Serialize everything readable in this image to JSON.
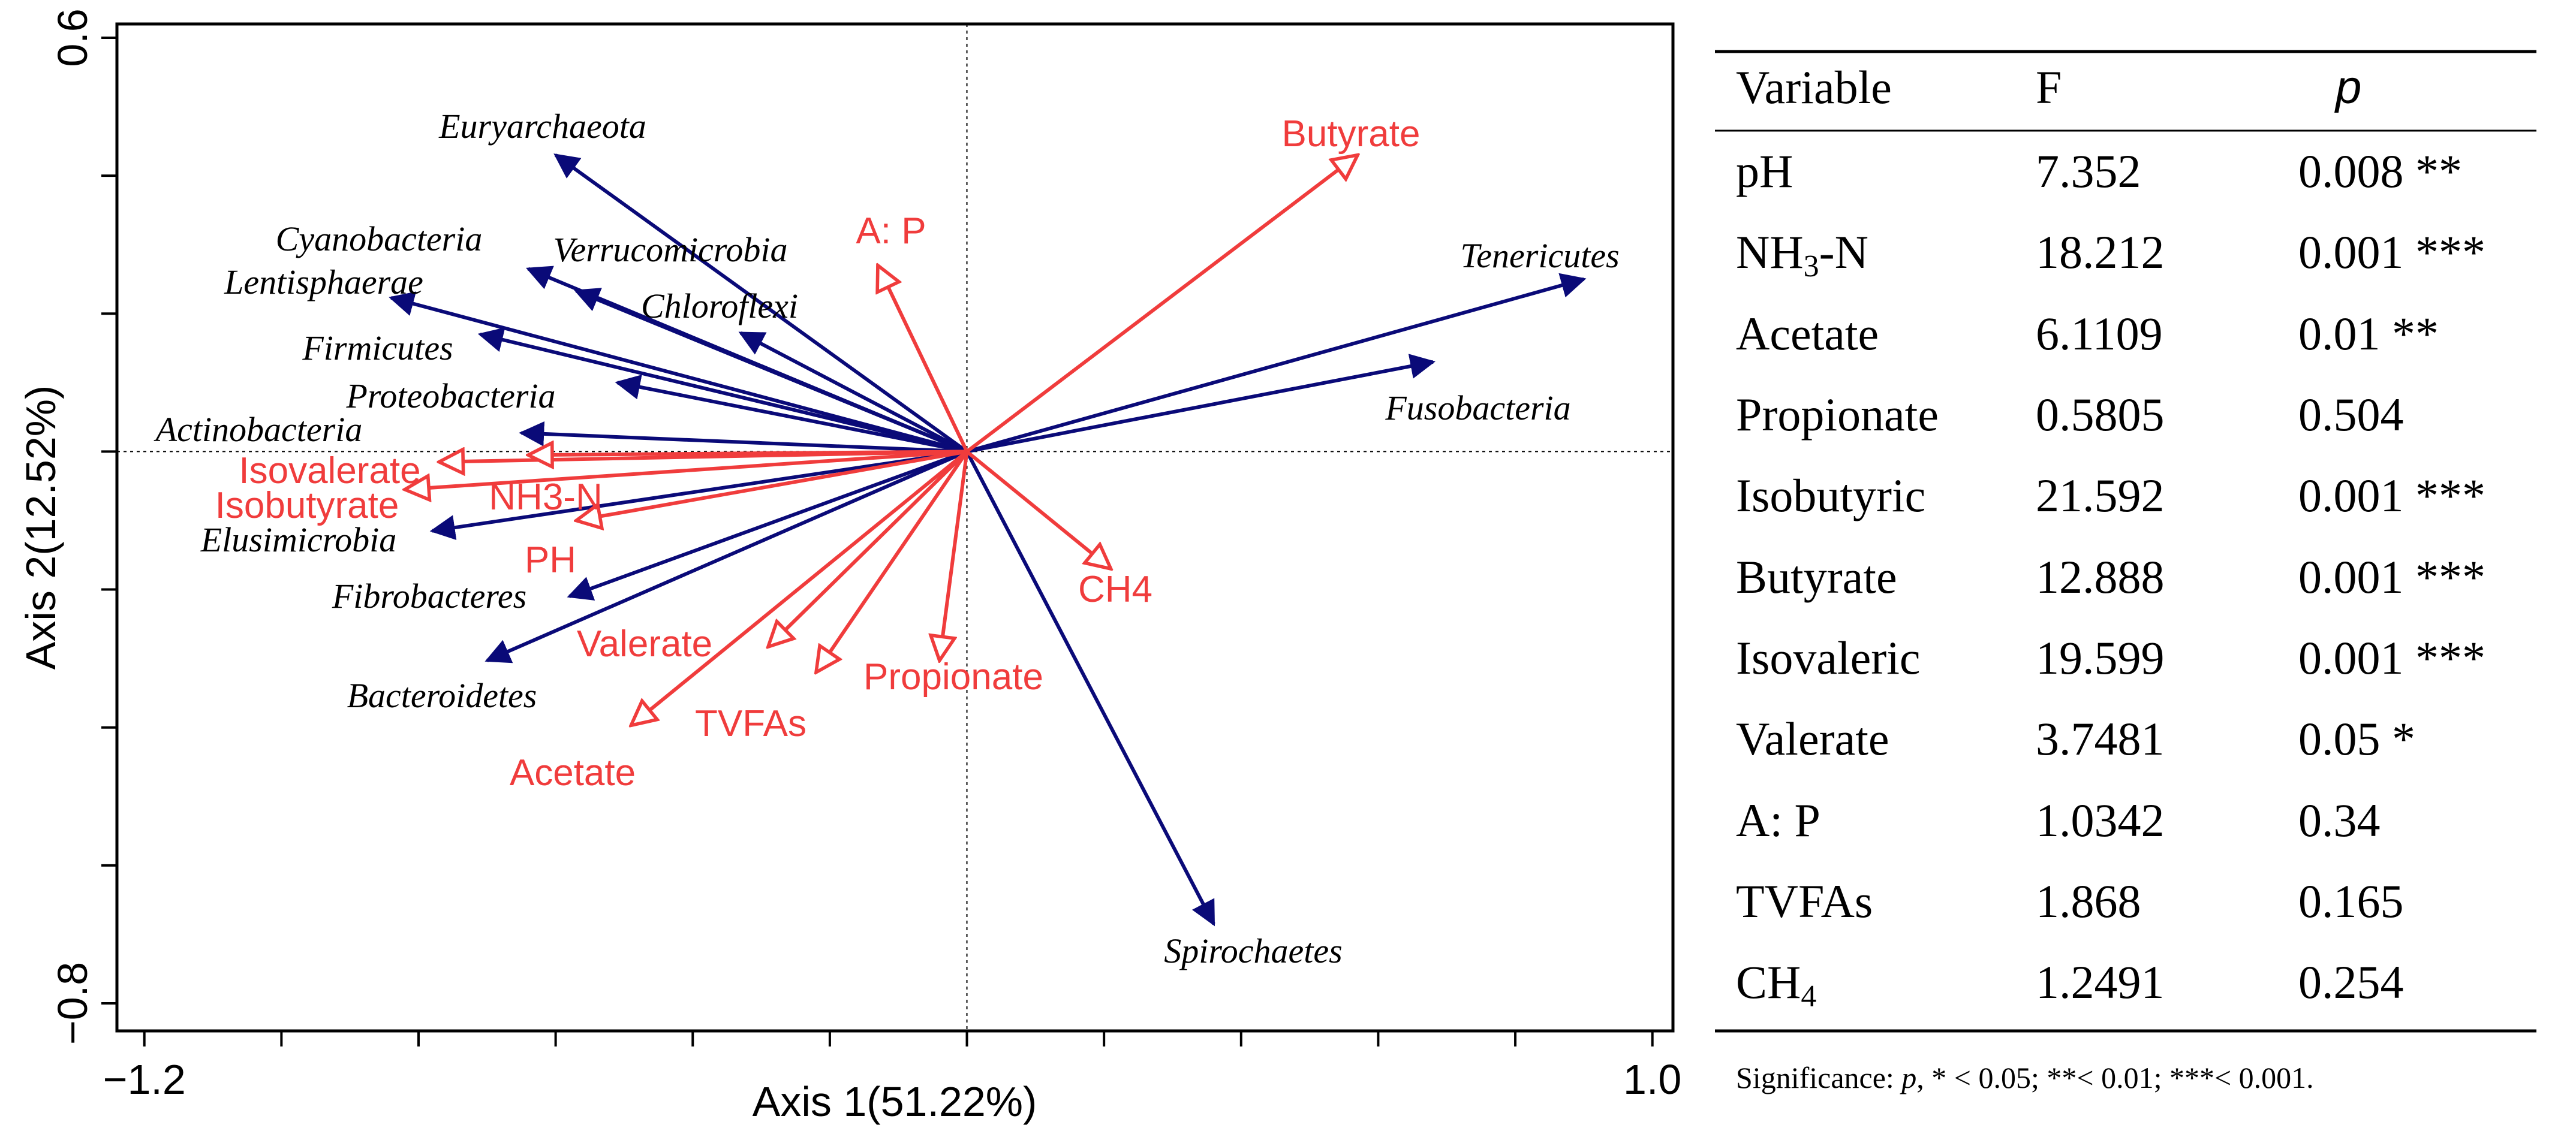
{
  "chart_data": {
    "type": "scatter",
    "subtype": "rda-biplot",
    "xlabel": "Axis 1(51.22%)",
    "ylabel": "Axis 2(12.52%)",
    "xlim": [
      -1.24,
      1.03
    ],
    "ylim": [
      -0.84,
      0.62
    ],
    "x_tick_values": [
      -1.2,
      -1.0,
      -0.8,
      -0.6,
      -0.4,
      -0.2,
      0,
      0.2,
      0.4,
      0.6,
      0.8,
      1.0
    ],
    "x_tick_labels": [
      {
        "value": -1.2,
        "label": "−1.2"
      },
      {
        "value": 1.0,
        "label": "1.0"
      }
    ],
    "y_tick_values": [
      0.6,
      0.4,
      0.2,
      0,
      -0.2,
      -0.4,
      -0.6,
      -0.8
    ],
    "y_tick_labels": [
      {
        "value": 0.6,
        "label": "0.6"
      },
      {
        "value": -0.8,
        "label": "−0.8"
      }
    ],
    "colors": {
      "taxa": "#0a0a78",
      "env": "#f03c3c",
      "axes": "#000000"
    },
    "taxa": [
      {
        "name": "Euryarchaeota",
        "x": -0.6,
        "y": 0.43
      },
      {
        "name": "Cyanobacteria",
        "x": -0.64,
        "y": 0.265
      },
      {
        "name": "Verrucomicrobia",
        "x": -0.57,
        "y": 0.233
      },
      {
        "name": "Chloroflexi",
        "x": -0.33,
        "y": 0.172
      },
      {
        "name": "Lentisphaerae",
        "x": -0.84,
        "y": 0.223
      },
      {
        "name": "Firmicutes",
        "x": -0.71,
        "y": 0.17
      },
      {
        "name": "Proteobacteria",
        "x": -0.51,
        "y": 0.1
      },
      {
        "name": "Actinobacteria",
        "x": -0.65,
        "y": 0.027
      },
      {
        "name": "Elusimicrobia",
        "x": -0.78,
        "y": -0.115
      },
      {
        "name": "Fibrobacteres",
        "x": -0.58,
        "y": -0.21
      },
      {
        "name": "Bacteroidetes",
        "x": -0.7,
        "y": -0.303
      },
      {
        "name": "Tenericutes",
        "x": 0.9,
        "y": 0.25
      },
      {
        "name": "Fusobacteria",
        "x": 0.68,
        "y": 0.13
      },
      {
        "name": "Spirochaetes",
        "x": 0.36,
        "y": -0.685
      }
    ],
    "environmental_factors": [
      {
        "name": "Butyrate",
        "x": 0.57,
        "y": 0.43
      },
      {
        "name": "A: P",
        "x": -0.13,
        "y": 0.27
      },
      {
        "name": "Isovalerate",
        "x": -0.77,
        "y": -0.015
      },
      {
        "name": "Isobutyrate",
        "x": -0.82,
        "y": -0.055
      },
      {
        "name": "NH3-N",
        "x": -0.57,
        "y": -0.1
      },
      {
        "name": "PH",
        "x": -0.64,
        "y": -0.005
      },
      {
        "name": "CH4",
        "x": 0.21,
        "y": -0.17
      },
      {
        "name": "Valerate",
        "x": -0.29,
        "y": -0.283
      },
      {
        "name": "TVFAs",
        "x": -0.22,
        "y": -0.32
      },
      {
        "name": "Propionate",
        "x": -0.04,
        "y": -0.303
      },
      {
        "name": "Acetate",
        "x": -0.49,
        "y": -0.397
      }
    ]
  },
  "table": {
    "headers": {
      "variable": "Variable",
      "f": "F",
      "p": "p"
    },
    "rows": [
      {
        "variable": "pH",
        "f": "7.352",
        "p": "0.008 **"
      },
      {
        "variable_main": "NH",
        "variable_sub": "3",
        "variable_tail": "-N",
        "f": "18.212",
        "p": "0.001 ***"
      },
      {
        "variable": "Acetate",
        "f": "6.1109",
        "p": "0.01 **"
      },
      {
        "variable": "Propionate",
        "f": "0.5805",
        "p": "0.504"
      },
      {
        "variable": "Isobutyric",
        "f": "21.592",
        "p": "0.001 ***"
      },
      {
        "variable": "Butyrate",
        "f": "12.888",
        "p": "0.001 ***"
      },
      {
        "variable": "Isovaleric",
        "f": "19.599",
        "p": "0.001 ***"
      },
      {
        "variable": "Valerate",
        "f": "3.7481",
        "p": "0.05 *"
      },
      {
        "variable": "A: P",
        "f": "1.0342",
        "p": "0.34"
      },
      {
        "variable": "TVFAs",
        "f": "1.868",
        "p": "0.165"
      },
      {
        "variable_main": "CH",
        "variable_sub": "4",
        "variable_tail": "",
        "f": "1.2491",
        "p": "0.254"
      }
    ],
    "footnote": {
      "lead": "Significance: ",
      "p_symbol": "p",
      "rest": ", * < 0.05; **< 0.01; ***< 0.001."
    }
  }
}
